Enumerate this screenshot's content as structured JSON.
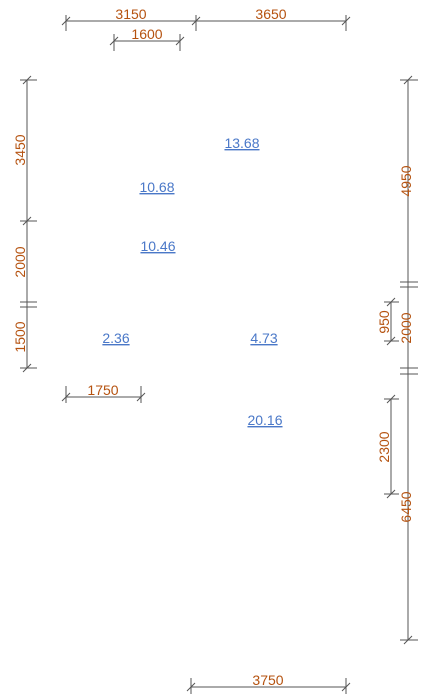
{
  "colors": {
    "dimension_text": "#b5520f",
    "area_label": "#4a78c8",
    "lines": "#555555"
  },
  "dimensions": {
    "top_left": "3150",
    "top_right": "3650",
    "top_inner": "1600",
    "left_upper": "3450",
    "left_middle": "2000",
    "left_lower": "1500",
    "mid_left": "1750",
    "right_upper": "4950",
    "right_small": "950",
    "right_middle": "2000",
    "right_inner": "2300",
    "right_lower": "6450",
    "bottom": "3750"
  },
  "areas": {
    "area_1": "13.68",
    "area_2": "10.68",
    "area_3": "10.46",
    "area_4": "2.36",
    "area_5": "4.73",
    "area_6": "20.16"
  }
}
